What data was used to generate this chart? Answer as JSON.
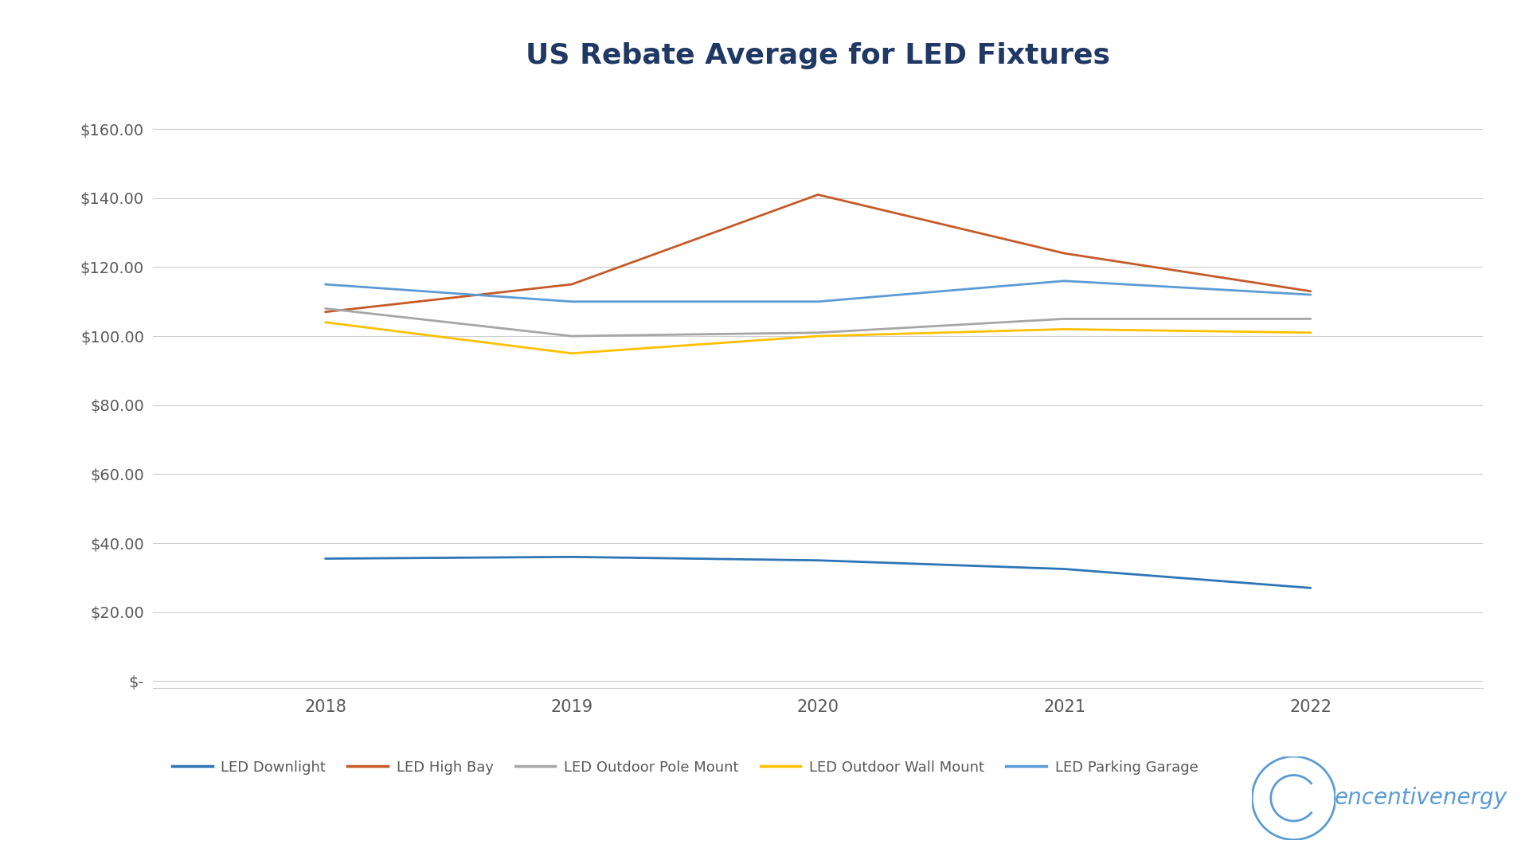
{
  "title": "US Rebate Average for LED Fixtures",
  "years": [
    2018,
    2019,
    2020,
    2021,
    2022
  ],
  "series": [
    {
      "label": "LED Downlight",
      "color": "#2E75B6",
      "values": [
        35.5,
        36.0,
        35.0,
        32.5,
        27.0
      ],
      "linewidth": 2.0
    },
    {
      "label": "LED High Bay",
      "color": "#C55A28",
      "values": [
        107.0,
        115.0,
        141.0,
        124.0,
        113.0
      ],
      "linewidth": 2.0
    },
    {
      "label": "LED Outdoor Pole Mount",
      "color": "#A6A6A6",
      "values": [
        108.0,
        100.0,
        101.0,
        105.0,
        105.0
      ],
      "linewidth": 2.0
    },
    {
      "label": "LED Outdoor Wall Mount",
      "color": "#FFC000",
      "values": [
        104.0,
        95.0,
        100.0,
        102.0,
        101.0
      ],
      "linewidth": 2.0
    },
    {
      "label": "LED Parking Garage",
      "color": "#5B9BD5",
      "values": [
        115.0,
        110.0,
        110.0,
        116.0,
        112.0
      ],
      "linewidth": 2.0
    }
  ],
  "ylim": [
    -2,
    170
  ],
  "yticks": [
    0,
    20,
    40,
    60,
    80,
    100,
    120,
    140,
    160
  ],
  "ytick_labels": [
    "$-",
    "$20.00",
    "$40.00",
    "$60.00",
    "$80.00",
    "$100.00",
    "$120.00",
    "$140.00",
    "$160.00"
  ],
  "background_color": "#FFFFFF",
  "grid_color": "#CCCCCC",
  "title_color": "#1F3864",
  "title_fontsize": 26,
  "tick_fontsize": 14,
  "legend_fontsize": 13,
  "axis_label_color": "#595959",
  "logo_color": "#5B9BD5",
  "logo_text": "encentivenergy",
  "logo_text_color": "#5B9BD5",
  "logo_fontsize": 20
}
